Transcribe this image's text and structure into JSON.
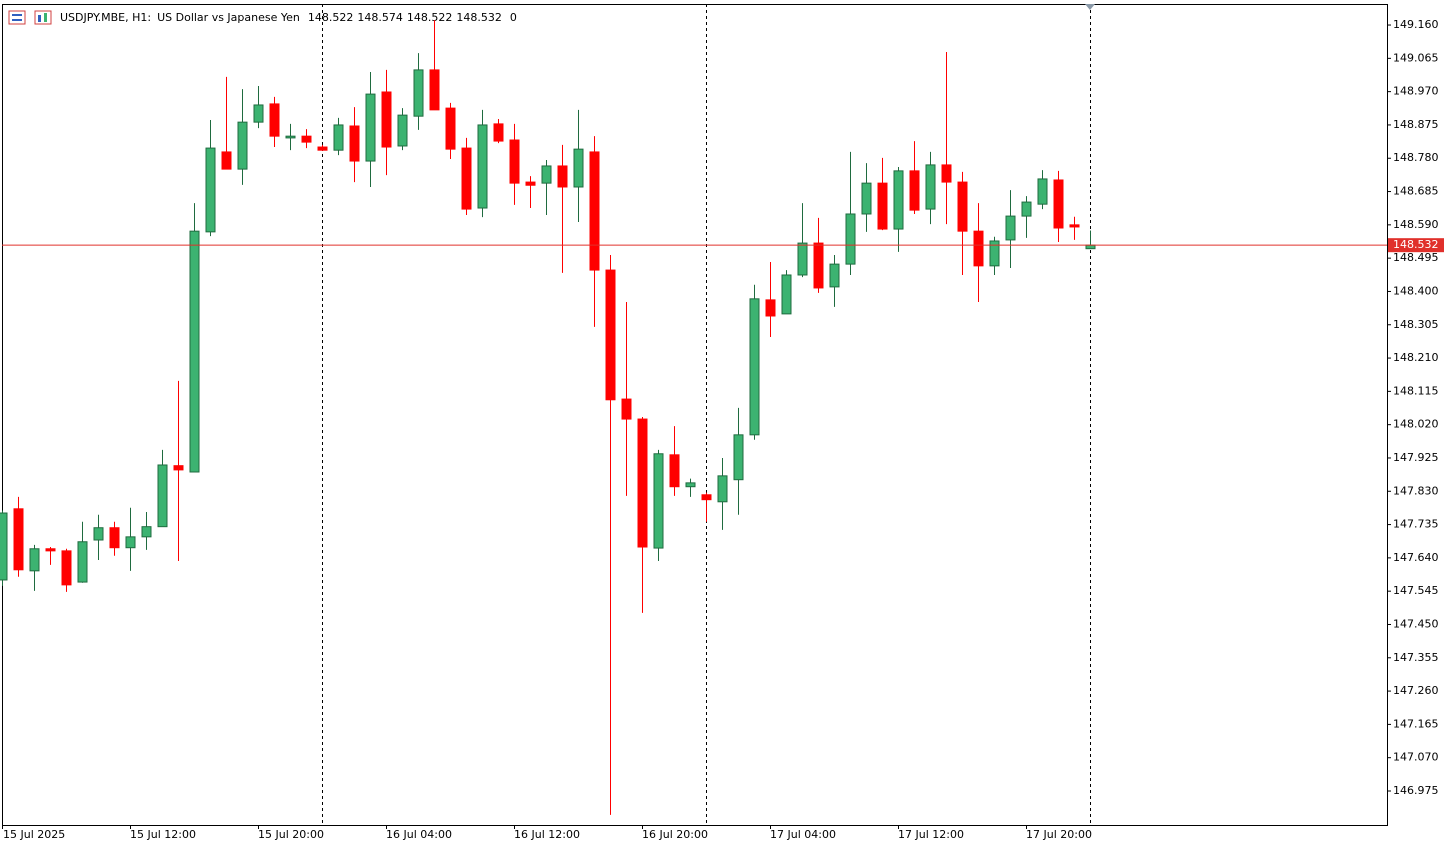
{
  "chart_data": {
    "type": "candlestick",
    "title": "USDJPY.MBE, H1:",
    "subtitle": "US Dollar vs Japanese Yen",
    "header_suffix": "0",
    "categories": [
      "15 Jul 2025",
      null,
      null,
      null,
      null,
      null,
      null,
      null,
      "15 Jul 12:00",
      null,
      null,
      null,
      null,
      null,
      null,
      null,
      "15 Jul 20:00",
      null,
      null,
      null,
      null,
      null,
      null,
      null,
      "16 Jul 04:00",
      null,
      null,
      null,
      null,
      null,
      null,
      null,
      "16 Jul 12:00",
      null,
      null,
      null,
      null,
      null,
      null,
      null,
      "16 Jul 20:00",
      null,
      null,
      null,
      null,
      null,
      null,
      null,
      "17 Jul 04:00",
      null,
      null,
      null,
      null,
      null,
      null,
      null,
      "17 Jul 12:00",
      null,
      null,
      null,
      null,
      null,
      null,
      null,
      "17 Jul 20:00",
      null,
      null,
      null,
      null
    ],
    "open": [
      147.577,
      147.78,
      147.603,
      147.666,
      147.66,
      147.571,
      147.691,
      147.726,
      147.669,
      147.7,
      147.729,
      147.903,
      147.885,
      148.57,
      148.798,
      148.749,
      148.883,
      148.935,
      148.838,
      148.843,
      148.812,
      148.803,
      148.872,
      148.772,
      148.969,
      148.815,
      148.9,
      149.032,
      148.923,
      148.809,
      148.638,
      148.878,
      148.832,
      148.712,
      148.709,
      148.758,
      148.698,
      148.798,
      148.461,
      148.093,
      148.036,
      147.668,
      147.934,
      147.843,
      147.82,
      147.8,
      147.863,
      147.991,
      148.376,
      148.336,
      148.447,
      148.538,
      148.413,
      148.478,
      148.621,
      148.709,
      148.578,
      148.744,
      148.635,
      148.761,
      148.712,
      148.572,
      148.473,
      148.547,
      148.615,
      148.649,
      148.718,
      148.59,
      148.522
    ],
    "high": [
      147.775,
      147.814,
      147.677,
      147.671,
      147.666,
      147.743,
      147.763,
      147.743,
      147.783,
      147.771,
      147.948,
      148.145,
      148.652,
      148.889,
      149.012,
      148.977,
      148.986,
      148.955,
      148.878,
      148.863,
      148.818,
      148.895,
      148.926,
      149.026,
      149.032,
      148.923,
      149.08,
      149.174,
      148.938,
      148.838,
      148.918,
      148.892,
      148.878,
      148.729,
      148.775,
      148.818,
      148.918,
      148.843,
      148.504,
      148.37,
      148.042,
      147.948,
      148.016,
      147.866,
      147.826,
      147.925,
      148.068,
      148.419,
      148.484,
      148.461,
      148.652,
      148.61,
      148.504,
      148.798,
      148.766,
      148.781,
      148.755,
      148.829,
      148.798,
      149.083,
      148.741,
      148.652,
      148.556,
      148.689,
      148.672,
      148.746,
      148.744,
      148.613,
      148.574
    ],
    "low": [
      147.56,
      147.586,
      147.546,
      147.62,
      147.543,
      147.569,
      147.634,
      147.646,
      147.603,
      147.663,
      147.729,
      147.631,
      147.885,
      148.558,
      148.749,
      148.704,
      148.866,
      148.812,
      148.803,
      148.809,
      148.801,
      148.789,
      148.712,
      148.698,
      148.732,
      148.803,
      148.861,
      148.918,
      148.778,
      148.618,
      148.612,
      148.823,
      148.647,
      148.638,
      148.618,
      148.453,
      148.598,
      148.299,
      146.907,
      147.817,
      147.483,
      147.631,
      147.817,
      147.814,
      147.743,
      147.72,
      147.763,
      147.977,
      148.27,
      148.336,
      148.441,
      148.396,
      148.356,
      148.447,
      148.57,
      148.575,
      148.513,
      148.621,
      148.592,
      148.592,
      148.447,
      148.37,
      148.447,
      148.467,
      148.553,
      148.635,
      148.541,
      148.547,
      148.522
    ],
    "close": [
      147.768,
      147.606,
      147.666,
      147.66,
      147.563,
      147.686,
      147.726,
      147.669,
      147.7,
      147.729,
      147.905,
      147.891,
      148.572,
      148.809,
      148.749,
      148.883,
      148.932,
      148.843,
      148.843,
      148.826,
      148.803,
      148.875,
      148.772,
      148.963,
      148.812,
      148.903,
      149.032,
      148.918,
      148.806,
      148.635,
      148.875,
      148.829,
      148.709,
      148.703,
      148.758,
      148.698,
      148.806,
      148.461,
      148.091,
      148.036,
      147.671,
      147.937,
      147.843,
      147.854,
      147.806,
      147.874,
      147.991,
      148.379,
      148.33,
      148.447,
      148.538,
      148.41,
      148.478,
      148.621,
      148.709,
      148.578,
      148.744,
      148.632,
      148.761,
      148.712,
      148.572,
      148.473,
      148.544,
      148.615,
      148.655,
      148.721,
      148.581,
      148.584,
      148.532
    ],
    "up_color": "#3cb371",
    "up_border": "#1f6b3f",
    "down_color": "#ff0000",
    "price_line_color": "#e0302b",
    "ylim": [
      146.878,
      149.22
    ],
    "yticks": [
      {
        "value": 149.16,
        "label": "149.160"
      },
      149.065,
      {
        "value": 148.97,
        "label": "148.970"
      },
      148.875,
      {
        "value": 148.78,
        "label": "148.780"
      },
      148.685,
      {
        "value": 148.59,
        "label": "148.590"
      },
      148.495,
      {
        "value": 148.4,
        "label": "148.400"
      },
      148.305,
      {
        "value": 148.21,
        "label": "148.210"
      },
      148.115,
      {
        "value": 148.02,
        "label": "148.020"
      },
      147.925,
      {
        "value": 147.83,
        "label": "147.830"
      },
      147.735,
      {
        "value": 147.64,
        "label": "147.640"
      },
      147.545,
      {
        "value": 147.45,
        "label": "147.450"
      },
      147.355,
      {
        "value": 147.26,
        "label": "147.260"
      },
      147.165,
      {
        "value": 147.07,
        "label": "147.070"
      },
      146.975
    ],
    "grid": false
  }
}
